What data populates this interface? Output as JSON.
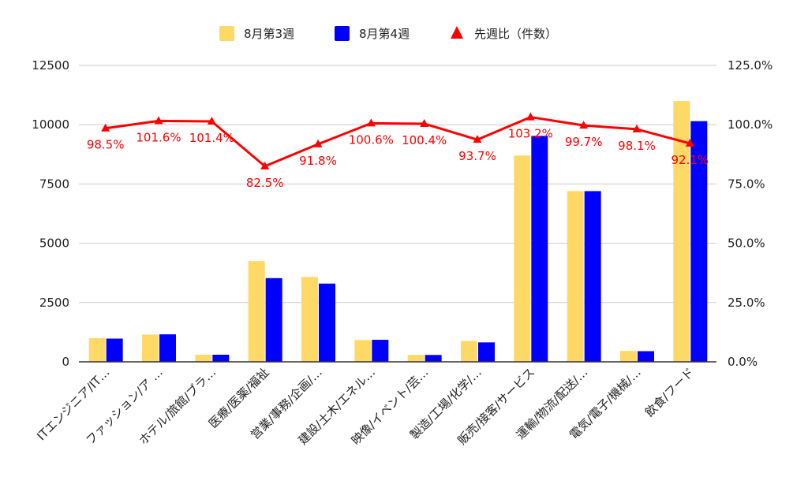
{
  "chart_data": {
    "type": "bar",
    "categories": [
      "ITエンジニア/IT…",
      "ファッション/ア …",
      "ホテル/旅館/ブラ…",
      "医療/医薬/福祉",
      "営業/事務/企画/…",
      "建設/土木/エネル…",
      "映像/イベント/芸…",
      "製造/工場/化学/…",
      "販売/接客/サービス",
      "運輸/物流/配送/…",
      "電気/電子/機械/…",
      "飲食/フード"
    ],
    "series": [
      {
        "name": "8月第3週",
        "kind": "bar",
        "axis": "left",
        "color": "#ffd966",
        "values": [
          1000,
          1150,
          300,
          4250,
          3580,
          920,
          290,
          880,
          8700,
          7200,
          460,
          11000
        ]
      },
      {
        "name": "8月第4週",
        "kind": "bar",
        "axis": "left",
        "color": "#0000ff",
        "values": [
          980,
          1160,
          300,
          3530,
          3300,
          930,
          290,
          820,
          9530,
          7200,
          450,
          10150
        ]
      },
      {
        "name": "先週比（件数）",
        "kind": "line",
        "axis": "right",
        "color": "#ff0000",
        "marker": "triangle",
        "values": [
          98.5,
          101.6,
          101.4,
          82.5,
          91.8,
          100.6,
          100.4,
          93.7,
          103.2,
          99.7,
          98.1,
          92.1
        ],
        "labels": [
          "98.5%",
          "101.6%",
          "101.4%",
          "82.5%",
          "91.8%",
          "100.6%",
          "100.4%",
          "93.7%",
          "103.2%",
          "99.7%",
          "98.1%",
          "92.1%"
        ]
      }
    ],
    "y_left": {
      "min": 0,
      "max": 12500,
      "ticks": [
        "0",
        "2500",
        "5000",
        "7500",
        "10000",
        "12500"
      ]
    },
    "y_right": {
      "min": 0,
      "max": 125,
      "ticks": [
        "0.0%",
        "25.0%",
        "50.0%",
        "75.0%",
        "100.0%",
        "125.0%"
      ]
    },
    "grid": true,
    "legend_position": "top-center"
  }
}
